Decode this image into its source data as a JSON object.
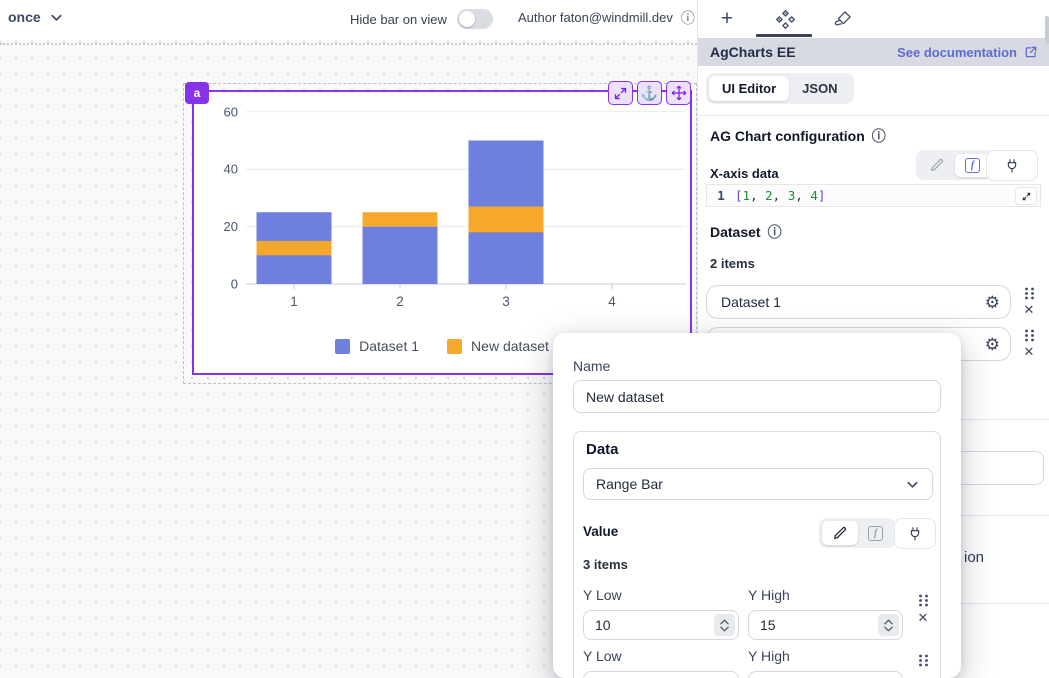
{
  "topbar": {
    "schedule": "once",
    "hide_bar_label": "Hide bar on view",
    "author": "Author faton@windmill.dev"
  },
  "component_badge": "a",
  "panel": {
    "title": "AgCharts EE",
    "doc_link": "See documentation",
    "editor_tab": "UI Editor",
    "json_tab": "JSON",
    "config_title": "AG Chart configuration",
    "xaxis_label": "X-axis data",
    "code": {
      "line_number": "1",
      "items": [
        "1",
        "2",
        "3",
        "4"
      ]
    },
    "dataset_label": "Dataset",
    "dataset_count": "2 items",
    "datasets": [
      {
        "label": "Dataset 1"
      },
      {
        "label": ""
      }
    ],
    "partial_label": "ion"
  },
  "modal": {
    "name_label": "Name",
    "name_value": "New dataset",
    "data_label": "Data",
    "data_type": "Range Bar",
    "value_label": "Value",
    "items_count": "3 items",
    "rows": [
      {
        "low_label": "Y Low",
        "high_label": "Y High",
        "low": "10",
        "high": "15"
      },
      {
        "low_label": "Y Low",
        "high_label": "Y High",
        "low": "",
        "high": ""
      }
    ]
  },
  "icons": {
    "info": "ⓘ",
    "gear": "⚙",
    "anchor": "⚓",
    "close": "✕",
    "plus": "+",
    "fx": "f"
  },
  "colors": {
    "accent_purple": "#8633ea",
    "bar_blue": "#6f7fdd",
    "bar_orange": "#f6a82c",
    "link_blue": "#5d6bd0",
    "panel_header_bg": "#d7dae3"
  },
  "chart_data": {
    "type": "bar",
    "title": "",
    "categories": [
      "1",
      "2",
      "3",
      "4"
    ],
    "series": [
      {
        "name": "Dataset 1",
        "type": "bar",
        "color": "#6f7fdd",
        "values": [
          25,
          20,
          50,
          0
        ]
      },
      {
        "name": "New dataset",
        "type": "range-bar",
        "color": "#f6a82c",
        "ranges": [
          [
            10,
            15
          ],
          [
            20,
            25
          ],
          [
            18,
            27
          ],
          null
        ]
      }
    ],
    "xlabel": "",
    "ylabel": "",
    "ylim": [
      0,
      60
    ],
    "yticks": [
      0,
      20,
      40,
      60
    ],
    "grid": true,
    "legend_position": "bottom"
  }
}
